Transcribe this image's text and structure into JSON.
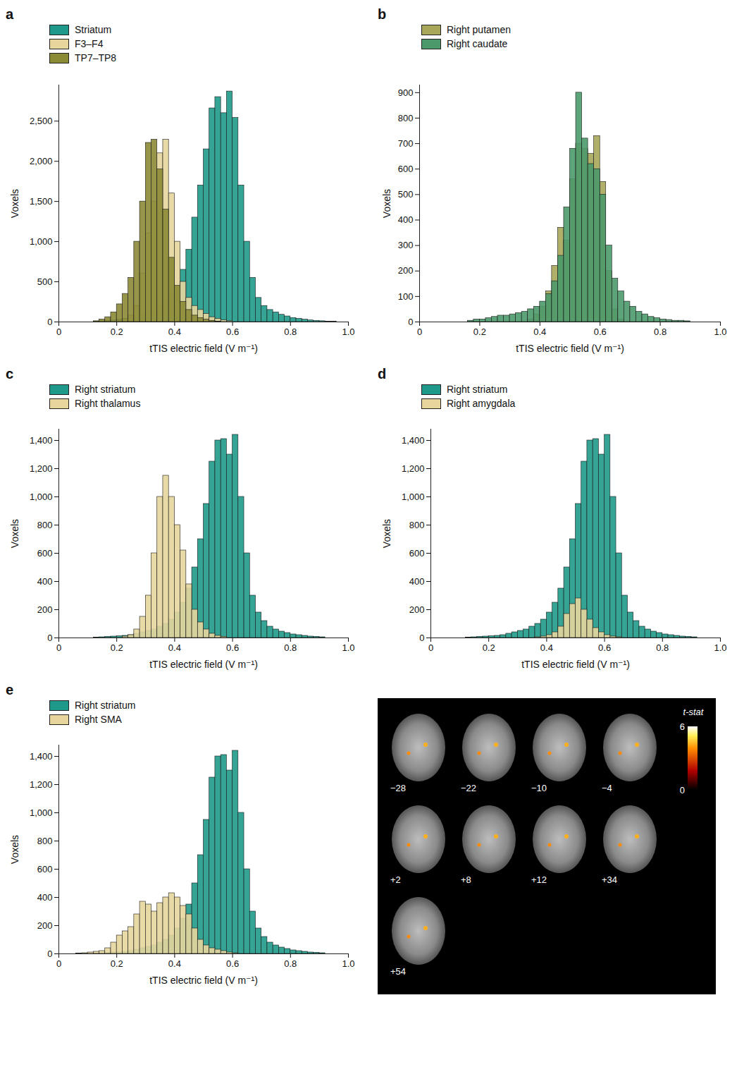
{
  "chart_data": [
    {
      "type": "histogram",
      "panel": "a",
      "x_label": "tTIS electric field (V m⁻¹)",
      "y_label": "Voxels",
      "legend": "top-left",
      "bins": [
        0.04,
        0.06,
        0.08,
        0.1,
        0.12,
        0.14,
        0.16,
        0.18,
        0.2,
        0.22,
        0.24,
        0.26,
        0.28,
        0.3,
        0.32,
        0.34,
        0.36,
        0.38,
        0.4,
        0.42,
        0.44,
        0.46,
        0.48,
        0.5,
        0.52,
        0.54,
        0.56,
        0.58,
        0.6,
        0.62,
        0.64,
        0.66,
        0.68,
        0.7,
        0.72,
        0.74,
        0.76,
        0.78,
        0.8,
        0.82,
        0.84,
        0.86,
        0.88,
        0.9,
        0.92,
        0.94,
        0.96
      ],
      "series": [
        {
          "name": "Striatum",
          "color": "#1f9a8a",
          "values": [
            0,
            0,
            0,
            0,
            5,
            10,
            15,
            20,
            30,
            40,
            50,
            70,
            90,
            110,
            140,
            180,
            250,
            330,
            450,
            650,
            900,
            1300,
            1700,
            2150,
            2660,
            2800,
            2600,
            2870,
            2540,
            1700,
            1000,
            550,
            300,
            200,
            150,
            120,
            90,
            70,
            50,
            40,
            30,
            20,
            15,
            10,
            5,
            3
          ]
        },
        {
          "name": "F3–F4",
          "color": "#e6d69c",
          "values": [
            0,
            0,
            0,
            0,
            0,
            0,
            0,
            0,
            10,
            30,
            80,
            200,
            600,
            1100,
            1500,
            2100,
            2270,
            1600,
            1000,
            500,
            300,
            200,
            150,
            100,
            60,
            40,
            20,
            10,
            0,
            0,
            0,
            0,
            0,
            0,
            0,
            0,
            0,
            0,
            0,
            0,
            0,
            0,
            0,
            0,
            0,
            0
          ]
        },
        {
          "name": "TP7–TP8",
          "color": "#8b8a35",
          "values": [
            0,
            0,
            0,
            0,
            10,
            30,
            60,
            120,
            220,
            350,
            550,
            1000,
            1500,
            2230,
            2270,
            1900,
            1400,
            800,
            450,
            250,
            150,
            80,
            50,
            30,
            15,
            5,
            0,
            0,
            0,
            0,
            0,
            0,
            0,
            0,
            0,
            0,
            0,
            0,
            0,
            0,
            0,
            0,
            0,
            0,
            0,
            0
          ]
        }
      ],
      "xlim": [
        0,
        1
      ],
      "xticks": [
        0,
        0.2,
        0.4,
        0.6,
        0.8,
        {
          "value": 1,
          "label": "1.0"
        }
      ],
      "ylim": [
        0,
        2950
      ],
      "yticks": [
        0,
        500,
        {
          "value": 1000,
          "label": "1,000"
        },
        {
          "value": 1500,
          "label": "1,500"
        },
        {
          "value": 2000,
          "label": "2,000"
        },
        {
          "value": 2500,
          "label": "2,500"
        }
      ]
    },
    {
      "type": "histogram",
      "panel": "b",
      "x_label": "tTIS electric field (V m⁻¹)",
      "y_label": "Voxels",
      "legend": "top-left",
      "bins": [
        0.04,
        0.06,
        0.08,
        0.1,
        0.12,
        0.14,
        0.16,
        0.18,
        0.2,
        0.22,
        0.24,
        0.26,
        0.28,
        0.3,
        0.32,
        0.34,
        0.36,
        0.38,
        0.4,
        0.42,
        0.44,
        0.46,
        0.48,
        0.5,
        0.52,
        0.54,
        0.56,
        0.58,
        0.6,
        0.62,
        0.64,
        0.66,
        0.68,
        0.7,
        0.72,
        0.74,
        0.76,
        0.78,
        0.8,
        0.82,
        0.84,
        0.86,
        0.88,
        0.9,
        0.92,
        0.94,
        0.96
      ],
      "series": [
        {
          "name": "Right putamen",
          "color": "#a9a75a",
          "values": [
            0,
            0,
            0,
            0,
            0,
            0,
            0,
            0,
            0,
            0,
            0,
            0,
            0,
            0,
            0,
            0,
            10,
            30,
            60,
            120,
            220,
            370,
            320,
            560,
            700,
            680,
            660,
            730,
            550,
            200,
            50,
            10,
            0,
            0,
            0,
            0,
            0,
            0,
            0,
            0,
            0,
            0,
            0,
            0,
            0,
            0
          ]
        },
        {
          "name": "Right caudate",
          "color": "#4c9a6c",
          "values": [
            0,
            0,
            0,
            0,
            0,
            0,
            5,
            10,
            10,
            15,
            20,
            25,
            25,
            30,
            35,
            40,
            50,
            60,
            80,
            110,
            160,
            260,
            450,
            680,
            900,
            720,
            620,
            600,
            500,
            300,
            170,
            120,
            80,
            60,
            40,
            30,
            20,
            15,
            10,
            8,
            5,
            5,
            3,
            0,
            0,
            0
          ]
        }
      ],
      "xlim": [
        0,
        1
      ],
      "xticks": [
        0,
        0.2,
        0.4,
        0.6,
        0.8,
        {
          "value": 1,
          "label": "1.0"
        }
      ],
      "ylim": [
        0,
        930
      ],
      "yticks": [
        0,
        100,
        200,
        300,
        400,
        500,
        600,
        700,
        800,
        900
      ]
    },
    {
      "type": "histogram",
      "panel": "c",
      "x_label": "tTIS electric field (V m⁻¹)",
      "y_label": "Voxels",
      "legend": "top-left",
      "bins": [
        0.04,
        0.06,
        0.08,
        0.1,
        0.12,
        0.14,
        0.16,
        0.18,
        0.2,
        0.22,
        0.24,
        0.26,
        0.28,
        0.3,
        0.32,
        0.34,
        0.36,
        0.38,
        0.4,
        0.42,
        0.44,
        0.46,
        0.48,
        0.5,
        0.52,
        0.54,
        0.56,
        0.58,
        0.6,
        0.62,
        0.64,
        0.66,
        0.68,
        0.7,
        0.72,
        0.74,
        0.76,
        0.78,
        0.8,
        0.82,
        0.84,
        0.86,
        0.88,
        0.9,
        0.92,
        0.94,
        0.96
      ],
      "series": [
        {
          "name": "Right striatum",
          "color": "#1f9a8a",
          "values": [
            0,
            0,
            0,
            0,
            3,
            5,
            8,
            10,
            12,
            15,
            20,
            30,
            40,
            50,
            60,
            80,
            100,
            130,
            180,
            250,
            350,
            500,
            700,
            950,
            1250,
            1400,
            1410,
            1300,
            1440,
            1000,
            600,
            300,
            180,
            120,
            80,
            60,
            45,
            35,
            25,
            20,
            15,
            10,
            8,
            5,
            0,
            0
          ]
        },
        {
          "name": "Right thalamus",
          "color": "#e6d69c",
          "values": [
            0,
            0,
            0,
            0,
            0,
            0,
            0,
            0,
            0,
            10,
            20,
            60,
            150,
            300,
            600,
            1000,
            1150,
            1000,
            800,
            620,
            380,
            200,
            110,
            60,
            30,
            15,
            8,
            0,
            0,
            0,
            0,
            0,
            0,
            0,
            0,
            0,
            0,
            0,
            0,
            0,
            0,
            0,
            0,
            0,
            0,
            0
          ]
        }
      ],
      "xlim": [
        0,
        1
      ],
      "xticks": [
        0,
        0.2,
        0.4,
        0.6,
        0.8,
        {
          "value": 1,
          "label": "1.0"
        }
      ],
      "ylim": [
        0,
        1480
      ],
      "yticks": [
        0,
        200,
        400,
        600,
        800,
        {
          "value": 1000,
          "label": "1,000"
        },
        {
          "value": 1200,
          "label": "1,200"
        },
        {
          "value": 1400,
          "label": "1,400"
        }
      ]
    },
    {
      "type": "histogram",
      "panel": "d",
      "x_label": "tTIS electric field (V m⁻¹)",
      "y_label": "Voxels",
      "legend": "top-left",
      "bins": [
        0.04,
        0.06,
        0.08,
        0.1,
        0.12,
        0.14,
        0.16,
        0.18,
        0.2,
        0.22,
        0.24,
        0.26,
        0.28,
        0.3,
        0.32,
        0.34,
        0.36,
        0.38,
        0.4,
        0.42,
        0.44,
        0.46,
        0.48,
        0.5,
        0.52,
        0.54,
        0.56,
        0.58,
        0.6,
        0.62,
        0.64,
        0.66,
        0.68,
        0.7,
        0.72,
        0.74,
        0.76,
        0.78,
        0.8,
        0.82,
        0.84,
        0.86,
        0.88,
        0.9,
        0.92,
        0.94,
        0.96
      ],
      "series": [
        {
          "name": "Right striatum",
          "color": "#1f9a8a",
          "values": [
            0,
            0,
            0,
            0,
            3,
            5,
            8,
            10,
            12,
            15,
            20,
            30,
            40,
            50,
            60,
            80,
            100,
            130,
            180,
            250,
            350,
            500,
            700,
            950,
            1250,
            1400,
            1410,
            1300,
            1440,
            1000,
            600,
            300,
            180,
            120,
            80,
            60,
            45,
            35,
            25,
            20,
            15,
            10,
            8,
            5,
            0,
            0
          ]
        },
        {
          "name": "Right amygdala",
          "color": "#e6d69c",
          "values": [
            0,
            0,
            0,
            0,
            0,
            0,
            0,
            0,
            0,
            0,
            0,
            0,
            0,
            0,
            0,
            0,
            5,
            10,
            20,
            40,
            80,
            170,
            240,
            280,
            200,
            130,
            70,
            40,
            20,
            10,
            5,
            0,
            0,
            0,
            0,
            0,
            0,
            0,
            0,
            0,
            0,
            0,
            0,
            0,
            0,
            0
          ]
        }
      ],
      "xlim": [
        0,
        1
      ],
      "xticks": [
        0,
        0.2,
        0.4,
        0.6,
        0.8,
        {
          "value": 1,
          "label": "1.0"
        }
      ],
      "ylim": [
        0,
        1480
      ],
      "yticks": [
        0,
        200,
        400,
        600,
        800,
        {
          "value": 1000,
          "label": "1,000"
        },
        {
          "value": 1200,
          "label": "1,200"
        },
        {
          "value": 1400,
          "label": "1,400"
        }
      ]
    },
    {
      "type": "histogram",
      "panel": "e",
      "x_label": "tTIS electric field (V m⁻¹)",
      "y_label": "Voxels",
      "legend": "top-left",
      "bins": [
        0.04,
        0.06,
        0.08,
        0.1,
        0.12,
        0.14,
        0.16,
        0.18,
        0.2,
        0.22,
        0.24,
        0.26,
        0.28,
        0.3,
        0.32,
        0.34,
        0.36,
        0.38,
        0.4,
        0.42,
        0.44,
        0.46,
        0.48,
        0.5,
        0.52,
        0.54,
        0.56,
        0.58,
        0.6,
        0.62,
        0.64,
        0.66,
        0.68,
        0.7,
        0.72,
        0.74,
        0.76,
        0.78,
        0.8,
        0.82,
        0.84,
        0.86,
        0.88,
        0.9,
        0.92,
        0.94,
        0.96
      ],
      "series": [
        {
          "name": "Right striatum",
          "color": "#1f9a8a",
          "values": [
            0,
            0,
            0,
            0,
            3,
            5,
            8,
            10,
            12,
            15,
            20,
            30,
            40,
            50,
            60,
            80,
            100,
            130,
            180,
            250,
            350,
            500,
            700,
            950,
            1250,
            1400,
            1410,
            1300,
            1440,
            1000,
            600,
            300,
            180,
            120,
            80,
            60,
            45,
            35,
            25,
            20,
            15,
            10,
            8,
            5,
            0,
            0
          ]
        },
        {
          "name": "Right SMA",
          "color": "#e6d69c",
          "values": [
            0,
            2,
            5,
            10,
            15,
            20,
            40,
            80,
            130,
            160,
            190,
            280,
            370,
            350,
            300,
            360,
            400,
            430,
            400,
            340,
            280,
            180,
            100,
            60,
            40,
            30,
            20,
            10,
            5,
            0,
            0,
            0,
            0,
            0,
            0,
            0,
            0,
            0,
            0,
            0,
            0,
            0,
            0,
            0,
            0,
            0
          ]
        }
      ],
      "xlim": [
        0,
        1
      ],
      "xticks": [
        0,
        0.2,
        0.4,
        0.6,
        0.8,
        {
          "value": 1,
          "label": "1.0"
        }
      ],
      "ylim": [
        0,
        1480
      ],
      "yticks": [
        0,
        200,
        400,
        600,
        800,
        {
          "value": 1000,
          "label": "1,000"
        },
        {
          "value": 1200,
          "label": "1,200"
        },
        {
          "value": 1400,
          "label": "1,400"
        }
      ]
    }
  ],
  "brain_map": {
    "colorbar_label": "t-stat",
    "colorbar_range": [
      0,
      6
    ],
    "colorbar_ticks": [
      0,
      6
    ],
    "slice_labels": [
      "−28",
      "−22",
      "−10",
      "−4",
      "+2",
      "+8",
      "+12",
      "+34",
      "+54"
    ]
  }
}
